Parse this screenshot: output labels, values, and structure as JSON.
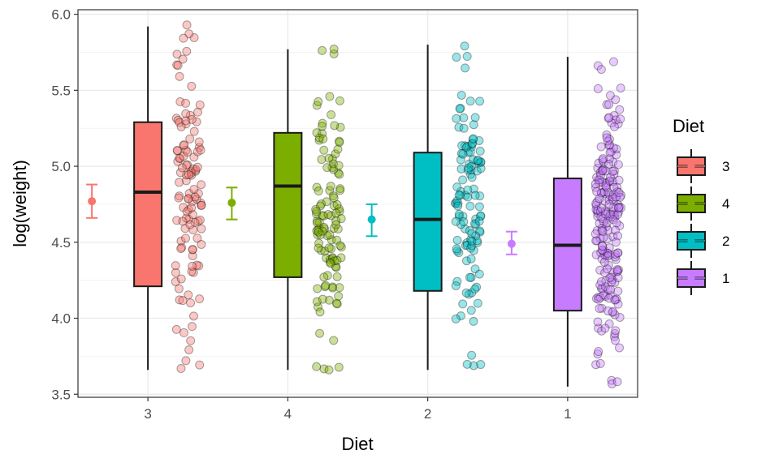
{
  "chart_data": {
    "type": "box",
    "xlabel": "Diet",
    "ylabel": "log(weight)",
    "ylim": [
      3.48,
      6.03
    ],
    "yticks": [
      "3.5",
      "4.0",
      "4.5",
      "5.0",
      "5.5",
      "6.0"
    ],
    "grid": true,
    "legend": {
      "title": "Diet",
      "placement": "right",
      "entries": [
        {
          "label": "3",
          "color": "#F8766D"
        },
        {
          "label": "4",
          "color": "#7CAE00"
        },
        {
          "label": "2",
          "color": "#00BFC4"
        },
        {
          "label": "1",
          "color": "#C77CFF"
        }
      ]
    },
    "categories": [
      "3",
      "4",
      "2",
      "1"
    ],
    "groups": [
      {
        "diet": "3",
        "color": "#F8766D",
        "point_count": 120,
        "seed": 11,
        "box": {
          "whisker_low": 3.66,
          "q1": 4.21,
          "median": 4.83,
          "q3": 5.29,
          "whisker_high": 5.92
        },
        "mean": {
          "value": 4.77,
          "lower": 4.66,
          "upper": 4.88
        },
        "jitter_range": [
          3.66,
          5.93
        ]
      },
      {
        "diet": "4",
        "color": "#7CAE00",
        "point_count": 118,
        "seed": 23,
        "box": {
          "whisker_low": 3.66,
          "q1": 4.27,
          "median": 4.87,
          "q3": 5.22,
          "whisker_high": 5.77
        },
        "mean": {
          "value": 4.76,
          "lower": 4.65,
          "upper": 4.86
        },
        "jitter_range": [
          3.66,
          5.78
        ]
      },
      {
        "diet": "2",
        "color": "#00BFC4",
        "point_count": 120,
        "seed": 37,
        "box": {
          "whisker_low": 3.66,
          "q1": 4.18,
          "median": 4.65,
          "q3": 5.09,
          "whisker_high": 5.8
        },
        "mean": {
          "value": 4.65,
          "lower": 4.54,
          "upper": 4.75
        },
        "jitter_range": [
          3.66,
          5.8
        ]
      },
      {
        "diet": "1",
        "color": "#C77CFF",
        "point_count": 220,
        "seed": 53,
        "box": {
          "whisker_low": 3.55,
          "q1": 4.05,
          "median": 4.48,
          "q3": 4.92,
          "whisker_high": 5.72
        },
        "mean": {
          "value": 4.49,
          "lower": 4.42,
          "upper": 4.57
        },
        "jitter_range": [
          3.55,
          5.72
        ]
      }
    ]
  }
}
